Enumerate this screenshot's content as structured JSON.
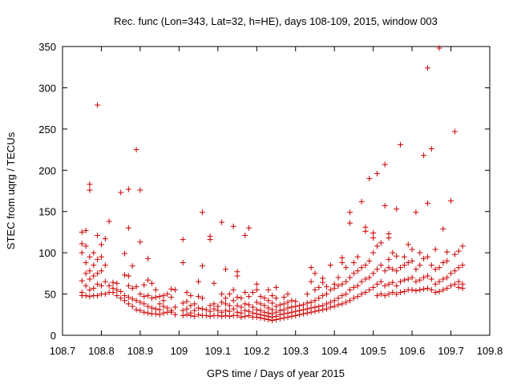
{
  "chart_data": {
    "type": "scatter",
    "title": "Rec. func (Lon=343, Lat=32, h=HE), days 108-109, 2015, window 003",
    "xlabel": "GPS time / Days of year 2015",
    "ylabel": "STEC from uqrg / TECUs",
    "xlim": [
      108.7,
      109.8
    ],
    "ylim": [
      0,
      350
    ],
    "xticks": [
      "108.7",
      "108.8",
      "108.9",
      "109",
      "109.1",
      "109.2",
      "109.3",
      "109.4",
      "109.5",
      "109.6",
      "109.7",
      "109.8"
    ],
    "yticks": [
      "0",
      "50",
      "100",
      "150",
      "200",
      "250",
      "300",
      "350"
    ],
    "grid": false,
    "legend": "none",
    "marker": "+",
    "color": "#cc0000",
    "points": [
      [
        108.75,
        48
      ],
      [
        108.75,
        52
      ],
      [
        108.75,
        66
      ],
      [
        108.75,
        100
      ],
      [
        108.75,
        111
      ],
      [
        108.75,
        125
      ],
      [
        108.76,
        48
      ],
      [
        108.76,
        60
      ],
      [
        108.76,
        75
      ],
      [
        108.76,
        88
      ],
      [
        108.76,
        108
      ],
      [
        108.76,
        127
      ],
      [
        108.77,
        47
      ],
      [
        108.77,
        55
      ],
      [
        108.77,
        68
      ],
      [
        108.77,
        78
      ],
      [
        108.77,
        95
      ],
      [
        108.77,
        176
      ],
      [
        108.77,
        183
      ],
      [
        108.78,
        48
      ],
      [
        108.78,
        57
      ],
      [
        108.78,
        72
      ],
      [
        108.78,
        85
      ],
      [
        108.78,
        100
      ],
      [
        108.79,
        48
      ],
      [
        108.79,
        62
      ],
      [
        108.79,
        75
      ],
      [
        108.79,
        92
      ],
      [
        108.79,
        121
      ],
      [
        108.79,
        279
      ],
      [
        108.8,
        50
      ],
      [
        108.8,
        60
      ],
      [
        108.8,
        78
      ],
      [
        108.8,
        95
      ],
      [
        108.8,
        110
      ],
      [
        108.81,
        50
      ],
      [
        108.81,
        65
      ],
      [
        108.81,
        85
      ],
      [
        108.81,
        117
      ],
      [
        108.82,
        52
      ],
      [
        108.82,
        60
      ],
      [
        108.82,
        138
      ],
      [
        108.83,
        52
      ],
      [
        108.83,
        57
      ],
      [
        108.83,
        64
      ],
      [
        108.84,
        48
      ],
      [
        108.84,
        55
      ],
      [
        108.84,
        63
      ],
      [
        108.85,
        45
      ],
      [
        108.85,
        53
      ],
      [
        108.85,
        173
      ],
      [
        108.86,
        42
      ],
      [
        108.86,
        48
      ],
      [
        108.86,
        73
      ],
      [
        108.86,
        99
      ],
      [
        108.87,
        38
      ],
      [
        108.87,
        46
      ],
      [
        108.87,
        60
      ],
      [
        108.87,
        72
      ],
      [
        108.87,
        130
      ],
      [
        108.87,
        177
      ],
      [
        108.88,
        35
      ],
      [
        108.88,
        44
      ],
      [
        108.88,
        57
      ],
      [
        108.88,
        84
      ],
      [
        108.89,
        31
      ],
      [
        108.89,
        42
      ],
      [
        108.89,
        59
      ],
      [
        108.89,
        225
      ],
      [
        108.9,
        30
      ],
      [
        108.9,
        40
      ],
      [
        108.9,
        50
      ],
      [
        108.9,
        113
      ],
      [
        108.9,
        176
      ],
      [
        108.91,
        28
      ],
      [
        108.91,
        38
      ],
      [
        108.91,
        47
      ],
      [
        108.91,
        61
      ],
      [
        108.92,
        27
      ],
      [
        108.92,
        35
      ],
      [
        108.92,
        48
      ],
      [
        108.92,
        67
      ],
      [
        108.92,
        93
      ],
      [
        108.93,
        26
      ],
      [
        108.93,
        33
      ],
      [
        108.93,
        45
      ],
      [
        108.93,
        63
      ],
      [
        108.94,
        26
      ],
      [
        108.94,
        32
      ],
      [
        108.94,
        46
      ],
      [
        108.94,
        55
      ],
      [
        108.95,
        25
      ],
      [
        108.95,
        31
      ],
      [
        108.95,
        38
      ],
      [
        108.95,
        47
      ],
      [
        108.96,
        27
      ],
      [
        108.96,
        35
      ],
      [
        108.96,
        42
      ],
      [
        108.96,
        48
      ],
      [
        108.97,
        28
      ],
      [
        108.97,
        33
      ],
      [
        108.97,
        50
      ],
      [
        108.98,
        28
      ],
      [
        108.98,
        30
      ],
      [
        108.98,
        46
      ],
      [
        108.98,
        56
      ],
      [
        108.99,
        25
      ],
      [
        108.99,
        34
      ],
      [
        108.99,
        55
      ],
      [
        109.01,
        24
      ],
      [
        109.01,
        30
      ],
      [
        109.01,
        39
      ],
      [
        109.01,
        88
      ],
      [
        109.01,
        116
      ],
      [
        109.02,
        25
      ],
      [
        109.02,
        32
      ],
      [
        109.02,
        41
      ],
      [
        109.02,
        52
      ],
      [
        109.03,
        24
      ],
      [
        109.03,
        27
      ],
      [
        109.03,
        36
      ],
      [
        109.03,
        48
      ],
      [
        109.04,
        23
      ],
      [
        109.04,
        30
      ],
      [
        109.04,
        38
      ],
      [
        109.05,
        25
      ],
      [
        109.05,
        33
      ],
      [
        109.05,
        47
      ],
      [
        109.05,
        65
      ],
      [
        109.06,
        24
      ],
      [
        109.06,
        32
      ],
      [
        109.06,
        45
      ],
      [
        109.06,
        84
      ],
      [
        109.06,
        149
      ],
      [
        109.07,
        24
      ],
      [
        109.07,
        31
      ],
      [
        109.08,
        23
      ],
      [
        109.08,
        29
      ],
      [
        109.08,
        36
      ],
      [
        109.08,
        116
      ],
      [
        109.08,
        120
      ],
      [
        109.09,
        24
      ],
      [
        109.09,
        32
      ],
      [
        109.09,
        38
      ],
      [
        109.09,
        63
      ],
      [
        109.1,
        24
      ],
      [
        109.1,
        30
      ],
      [
        109.1,
        35
      ],
      [
        109.11,
        23
      ],
      [
        109.11,
        28
      ],
      [
        109.11,
        40
      ],
      [
        109.11,
        50
      ],
      [
        109.11,
        137
      ],
      [
        109.12,
        24
      ],
      [
        109.12,
        30
      ],
      [
        109.12,
        38
      ],
      [
        109.12,
        45
      ],
      [
        109.12,
        80
      ],
      [
        109.13,
        23
      ],
      [
        109.13,
        29
      ],
      [
        109.13,
        36
      ],
      [
        109.13,
        50
      ],
      [
        109.14,
        24
      ],
      [
        109.14,
        32
      ],
      [
        109.14,
        42
      ],
      [
        109.14,
        55
      ],
      [
        109.14,
        132
      ],
      [
        109.15,
        24
      ],
      [
        109.15,
        28
      ],
      [
        109.15,
        36
      ],
      [
        109.15,
        46
      ],
      [
        109.15,
        72
      ],
      [
        109.15,
        77
      ],
      [
        109.16,
        22
      ],
      [
        109.16,
        27
      ],
      [
        109.16,
        34
      ],
      [
        109.16,
        45
      ],
      [
        109.17,
        23
      ],
      [
        109.17,
        30
      ],
      [
        109.17,
        38
      ],
      [
        109.17,
        52
      ],
      [
        109.17,
        121
      ],
      [
        109.18,
        24
      ],
      [
        109.18,
        29
      ],
      [
        109.18,
        37
      ],
      [
        109.18,
        47
      ],
      [
        109.18,
        130
      ],
      [
        109.19,
        22
      ],
      [
        109.19,
        27
      ],
      [
        109.19,
        34
      ],
      [
        109.19,
        52
      ],
      [
        109.2,
        22
      ],
      [
        109.2,
        26
      ],
      [
        109.2,
        31
      ],
      [
        109.2,
        40
      ],
      [
        109.2,
        55
      ],
      [
        109.2,
        62
      ],
      [
        109.21,
        21
      ],
      [
        109.21,
        25
      ],
      [
        109.21,
        30
      ],
      [
        109.21,
        38
      ],
      [
        109.21,
        47
      ],
      [
        109.22,
        20
      ],
      [
        109.22,
        24
      ],
      [
        109.22,
        28
      ],
      [
        109.22,
        36
      ],
      [
        109.22,
        45
      ],
      [
        109.23,
        19
      ],
      [
        109.23,
        23
      ],
      [
        109.23,
        27
      ],
      [
        109.23,
        33
      ],
      [
        109.23,
        42
      ],
      [
        109.23,
        55
      ],
      [
        109.24,
        18
      ],
      [
        109.24,
        22
      ],
      [
        109.24,
        26
      ],
      [
        109.24,
        31
      ],
      [
        109.24,
        39
      ],
      [
        109.24,
        48
      ],
      [
        109.25,
        19
      ],
      [
        109.25,
        23
      ],
      [
        109.25,
        28
      ],
      [
        109.25,
        35
      ],
      [
        109.25,
        45
      ],
      [
        109.25,
        58
      ],
      [
        109.26,
        20
      ],
      [
        109.26,
        25
      ],
      [
        109.26,
        30
      ],
      [
        109.26,
        37
      ],
      [
        109.27,
        21
      ],
      [
        109.27,
        26
      ],
      [
        109.27,
        31
      ],
      [
        109.27,
        38
      ],
      [
        109.27,
        46
      ],
      [
        109.28,
        22
      ],
      [
        109.28,
        27
      ],
      [
        109.28,
        33
      ],
      [
        109.28,
        40
      ],
      [
        109.28,
        50
      ],
      [
        109.29,
        23
      ],
      [
        109.29,
        28
      ],
      [
        109.29,
        34
      ],
      [
        109.29,
        42
      ],
      [
        109.3,
        24
      ],
      [
        109.3,
        29
      ],
      [
        109.3,
        35
      ],
      [
        109.3,
        41
      ],
      [
        109.31,
        25
      ],
      [
        109.31,
        30
      ],
      [
        109.31,
        36
      ],
      [
        109.32,
        26
      ],
      [
        109.32,
        31
      ],
      [
        109.32,
        37
      ],
      [
        109.33,
        27
      ],
      [
        109.33,
        32
      ],
      [
        109.33,
        39
      ],
      [
        109.33,
        50
      ],
      [
        109.34,
        28
      ],
      [
        109.34,
        33
      ],
      [
        109.34,
        40
      ],
      [
        109.34,
        65
      ],
      [
        109.34,
        82
      ],
      [
        109.35,
        29
      ],
      [
        109.35,
        34
      ],
      [
        109.35,
        42
      ],
      [
        109.35,
        55
      ],
      [
        109.35,
        75
      ],
      [
        109.36,
        30
      ],
      [
        109.36,
        35
      ],
      [
        109.36,
        45
      ],
      [
        109.36,
        58
      ],
      [
        109.37,
        31
      ],
      [
        109.37,
        36
      ],
      [
        109.37,
        48
      ],
      [
        109.37,
        64
      ],
      [
        109.37,
        69
      ],
      [
        109.38,
        32
      ],
      [
        109.38,
        38
      ],
      [
        109.38,
        50
      ],
      [
        109.38,
        59
      ],
      [
        109.39,
        34
      ],
      [
        109.39,
        40
      ],
      [
        109.39,
        55
      ],
      [
        109.39,
        85
      ],
      [
        109.4,
        35
      ],
      [
        109.4,
        42
      ],
      [
        109.4,
        57
      ],
      [
        109.4,
        62
      ],
      [
        109.41,
        37
      ],
      [
        109.41,
        45
      ],
      [
        109.41,
        60
      ],
      [
        109.41,
        70
      ],
      [
        109.42,
        38
      ],
      [
        109.42,
        48
      ],
      [
        109.42,
        62
      ],
      [
        109.42,
        88
      ],
      [
        109.42,
        94
      ],
      [
        109.43,
        40
      ],
      [
        109.43,
        50
      ],
      [
        109.43,
        65
      ],
      [
        109.43,
        82
      ],
      [
        109.44,
        42
      ],
      [
        109.44,
        55
      ],
      [
        109.44,
        70
      ],
      [
        109.44,
        136
      ],
      [
        109.44,
        149
      ],
      [
        109.45,
        45
      ],
      [
        109.45,
        58
      ],
      [
        109.45,
        75
      ],
      [
        109.45,
        88
      ],
      [
        109.46,
        47
      ],
      [
        109.46,
        60
      ],
      [
        109.46,
        78
      ],
      [
        109.46,
        95
      ],
      [
        109.47,
        50
      ],
      [
        109.47,
        65
      ],
      [
        109.47,
        82
      ],
      [
        109.47,
        162
      ],
      [
        109.48,
        52
      ],
      [
        109.48,
        68
      ],
      [
        109.48,
        85
      ],
      [
        109.48,
        126
      ],
      [
        109.48,
        131
      ],
      [
        109.49,
        55
      ],
      [
        109.49,
        70
      ],
      [
        109.49,
        90
      ],
      [
        109.49,
        190
      ],
      [
        109.5,
        58
      ],
      [
        109.5,
        75
      ],
      [
        109.5,
        100
      ],
      [
        109.5,
        118
      ],
      [
        109.5,
        124
      ],
      [
        109.51,
        48
      ],
      [
        109.51,
        62
      ],
      [
        109.51,
        80
      ],
      [
        109.51,
        108
      ],
      [
        109.51,
        196
      ],
      [
        109.52,
        50
      ],
      [
        109.52,
        65
      ],
      [
        109.52,
        85
      ],
      [
        109.52,
        112
      ],
      [
        109.53,
        48
      ],
      [
        109.53,
        60
      ],
      [
        109.53,
        78
      ],
      [
        109.53,
        157
      ],
      [
        109.53,
        207
      ],
      [
        109.54,
        50
      ],
      [
        109.54,
        62
      ],
      [
        109.54,
        82
      ],
      [
        109.54,
        92
      ],
      [
        109.54,
        118
      ],
      [
        109.54,
        123
      ],
      [
        109.55,
        52
      ],
      [
        109.55,
        64
      ],
      [
        109.55,
        80
      ],
      [
        109.55,
        100
      ],
      [
        109.56,
        50
      ],
      [
        109.56,
        60
      ],
      [
        109.56,
        78
      ],
      [
        109.56,
        96
      ],
      [
        109.56,
        153
      ],
      [
        109.57,
        52
      ],
      [
        109.57,
        65
      ],
      [
        109.57,
        82
      ],
      [
        109.57,
        231
      ],
      [
        109.58,
        53
      ],
      [
        109.58,
        67
      ],
      [
        109.58,
        85
      ],
      [
        109.58,
        95
      ],
      [
        109.59,
        55
      ],
      [
        109.59,
        68
      ],
      [
        109.59,
        88
      ],
      [
        109.59,
        110
      ],
      [
        109.6,
        55
      ],
      [
        109.6,
        70
      ],
      [
        109.6,
        90
      ],
      [
        109.6,
        104
      ],
      [
        109.61,
        54
      ],
      [
        109.61,
        65
      ],
      [
        109.61,
        80
      ],
      [
        109.61,
        149
      ],
      [
        109.62,
        55
      ],
      [
        109.62,
        67
      ],
      [
        109.62,
        85
      ],
      [
        109.62,
        100
      ],
      [
        109.63,
        56
      ],
      [
        109.63,
        70
      ],
      [
        109.63,
        93
      ],
      [
        109.63,
        218
      ],
      [
        109.64,
        57
      ],
      [
        109.64,
        72
      ],
      [
        109.64,
        95
      ],
      [
        109.64,
        160
      ],
      [
        109.64,
        324
      ],
      [
        109.65,
        55
      ],
      [
        109.65,
        68
      ],
      [
        109.65,
        85
      ],
      [
        109.65,
        226
      ],
      [
        109.66,
        52
      ],
      [
        109.66,
        62
      ],
      [
        109.66,
        80
      ],
      [
        109.66,
        104
      ],
      [
        109.67,
        53
      ],
      [
        109.67,
        65
      ],
      [
        109.67,
        82
      ],
      [
        109.67,
        348
      ],
      [
        109.68,
        55
      ],
      [
        109.68,
        68
      ],
      [
        109.68,
        88
      ],
      [
        109.68,
        129
      ],
      [
        109.69,
        57
      ],
      [
        109.69,
        70
      ],
      [
        109.69,
        90
      ],
      [
        109.69,
        101
      ],
      [
        109.7,
        60
      ],
      [
        109.7,
        75
      ],
      [
        109.7,
        163
      ],
      [
        109.71,
        62
      ],
      [
        109.71,
        78
      ],
      [
        109.71,
        98
      ],
      [
        109.71,
        247
      ],
      [
        109.72,
        58
      ],
      [
        109.72,
        65
      ],
      [
        109.72,
        82
      ],
      [
        109.72,
        102
      ],
      [
        109.73,
        57
      ],
      [
        109.73,
        62
      ],
      [
        109.73,
        85
      ],
      [
        109.73,
        108
      ]
    ]
  }
}
